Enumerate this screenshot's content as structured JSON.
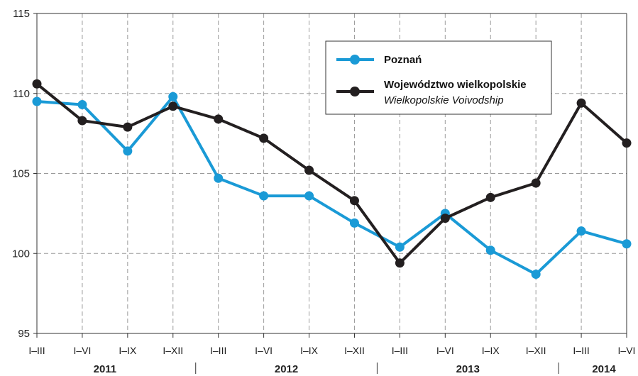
{
  "chart_data": {
    "type": "line",
    "title": "",
    "xlabel": "",
    "ylabel": "",
    "ylim": [
      95,
      115
    ],
    "yticks": [
      95,
      100,
      105,
      110,
      115
    ],
    "categories": [
      "I–III",
      "I–VI",
      "I–IX",
      "I–XII",
      "I–III",
      "I–VI",
      "I–IX",
      "I–XII",
      "I–III",
      "I–VI",
      "I–IX",
      "I–XII",
      "I–III",
      "I–VI"
    ],
    "years": [
      {
        "label": "2011",
        "start": 0,
        "end": 3
      },
      {
        "label": "2012",
        "start": 4,
        "end": 7
      },
      {
        "label": "2013",
        "start": 8,
        "end": 11
      },
      {
        "label": "2014",
        "start": 12,
        "end": 13
      }
    ],
    "grid": true,
    "legend_position": "top-right",
    "series": [
      {
        "name": "Poznań",
        "name_en": "",
        "color": "#1a9ad6",
        "values": [
          109.5,
          109.3,
          106.4,
          109.8,
          104.7,
          103.6,
          103.6,
          101.9,
          100.4,
          102.5,
          100.2,
          98.7,
          101.4,
          100.6
        ]
      },
      {
        "name": "Województwo wielkopolskie",
        "name_en": "Wielkopolskie Voivodship",
        "color": "#231f20",
        "values": [
          110.6,
          108.3,
          107.9,
          109.2,
          108.4,
          107.2,
          105.2,
          103.3,
          99.4,
          102.2,
          103.5,
          104.4,
          109.4,
          106.9
        ]
      }
    ]
  }
}
